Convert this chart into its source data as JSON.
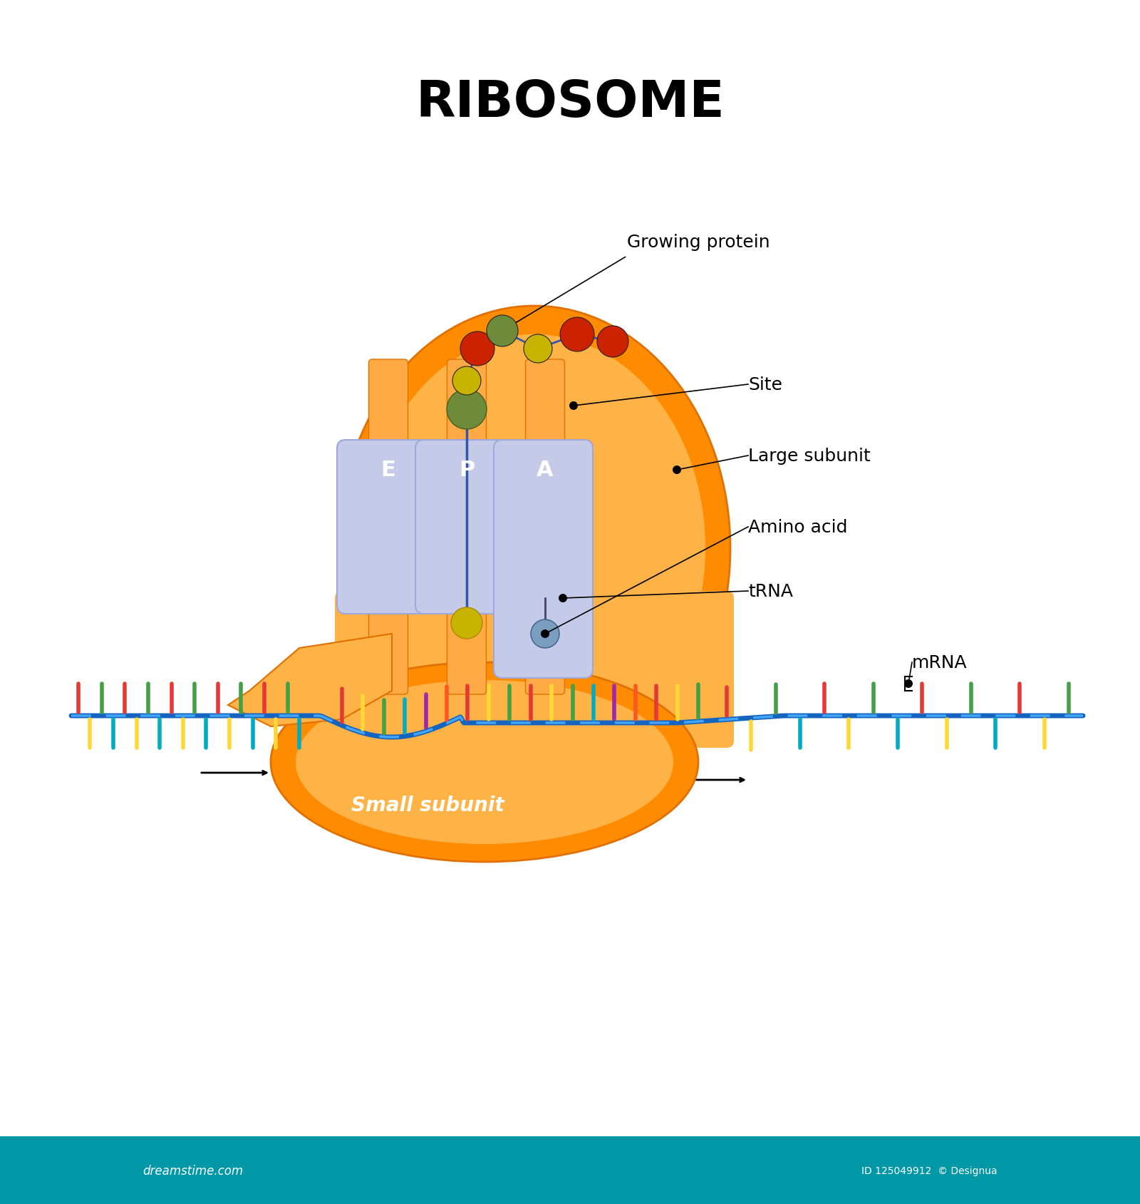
{
  "title": "RIBOSOME",
  "title_fontsize": 52,
  "title_fontweight": "bold",
  "bg_color": "#ffffff",
  "orange_main": "#FF8C00",
  "orange_light": "#FFB347",
  "orange_lighter": "#FFCC80",
  "orange_dark": "#E07000",
  "blue_mrna": "#1565C0",
  "blue_light_mrna": "#42A5F5",
  "tRNA_box_color": "#C5CAE9",
  "tRNA_box_edge": "#9FA8DA",
  "site_dot_color": "#546E7A",
  "amino_acid_P_color": "#6D8B3A",
  "amino_acid_P2_color": "#C8B400",
  "protein_colors": [
    "#CC2200",
    "#C8B400",
    "#6D8B3A",
    "#C8B400",
    "#CC2200"
  ],
  "mrna_colors": [
    "#E53935",
    "#FDD835",
    "#43A047",
    "#00ACC1",
    "#E53935",
    "#FDD835",
    "#43A047",
    "#00ACC1"
  ],
  "labels": {
    "growing_protein": "Growing protein",
    "site": "Site",
    "large_subunit": "Large subunit",
    "amino_acid": "Amino acid",
    "trna": "tRNA",
    "mrna": "mRNA",
    "small_subunit": "Small subunit",
    "E": "E",
    "P": "P",
    "A": "A"
  },
  "label_fontsize": 18,
  "site_label_fontsize": 22,
  "watermark": "dreamstime.com",
  "footer_color": "#0097A7",
  "footer_text": "dreamstime.com",
  "footer_id": "ID 125049912  © Designua"
}
